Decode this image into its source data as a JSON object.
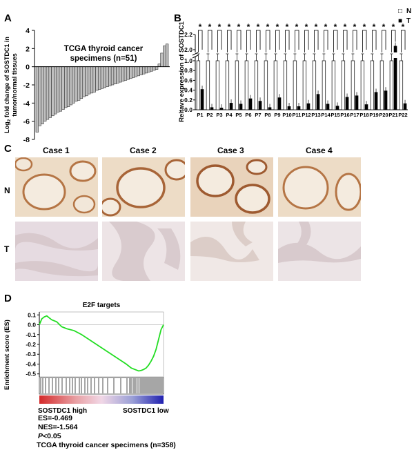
{
  "panels": {
    "a": "A",
    "b": "B",
    "c": "C",
    "d": "D"
  },
  "chart_data": [
    {
      "type": "bar",
      "panel": "A",
      "title": "TCGA thyroid cancer specimens (n=51)",
      "title_line1": "TCGA thyroid cancer",
      "title_line2": "specimens (n=51)",
      "ylabel": "Log2 fold change of SOSTDC1 in tumor/normal tissues",
      "ylabel_line1": "Log",
      "ylabel_sub": "2",
      "ylabel_line1b": " fold change of SOSTDC1 in",
      "ylabel_line2": "tumor/normal tissues",
      "ylim": [
        -8,
        4
      ],
      "yticks": [
        "4",
        "2",
        "0",
        "-2",
        "-4",
        "-6",
        "-8"
      ],
      "values": [
        -7.2,
        -6.5,
        -6.3,
        -6.0,
        -5.8,
        -5.6,
        -5.4,
        -5.2,
        -5.0,
        -4.9,
        -4.7,
        -4.5,
        -4.4,
        -4.2,
        -4.0,
        -3.8,
        -3.7,
        -3.5,
        -3.3,
        -3.2,
        -3.0,
        -2.9,
        -2.8,
        -2.6,
        -2.5,
        -2.4,
        -2.3,
        -2.2,
        -2.1,
        -2.0,
        -1.9,
        -1.8,
        -1.7,
        -1.6,
        -1.5,
        -1.4,
        -1.3,
        -1.2,
        -1.1,
        -1.0,
        -0.9,
        -0.8,
        -0.7,
        -0.6,
        -0.5,
        -0.4,
        -0.3,
        0.3,
        1.5,
        2.3,
        2.5
      ]
    },
    {
      "type": "bar",
      "panel": "B",
      "ylabel": "Reltave expression of SOSTDC1",
      "yticks": [
        "2.2",
        "2.0",
        "1.0",
        "0.8",
        "0.6",
        "0.4",
        "0.2",
        "0.0"
      ],
      "categories": [
        "P1",
        "P2",
        "P3",
        "P4",
        "P5",
        "P6",
        "P7",
        "P8",
        "P9",
        "P10",
        "P11",
        "P12",
        "P13",
        "P14",
        "P15",
        "P16",
        "P17",
        "P18",
        "P19",
        "P20",
        "P21",
        "P22"
      ],
      "significance": "*",
      "legend": [
        {
          "symbol": "□",
          "label": "N"
        },
        {
          "symbol": "■",
          "label": "T"
        }
      ],
      "series": [
        {
          "name": "N",
          "values": [
            1.0,
            1.0,
            1.0,
            1.0,
            1.0,
            1.0,
            1.0,
            1.0,
            1.0,
            1.0,
            1.0,
            1.0,
            1.0,
            1.0,
            1.0,
            1.0,
            1.0,
            1.0,
            1.0,
            1.0,
            1.0,
            1.0
          ]
        },
        {
          "name": "T",
          "values": [
            0.42,
            0.05,
            0.04,
            0.14,
            0.12,
            0.23,
            0.18,
            0.05,
            0.25,
            0.07,
            0.07,
            0.13,
            0.32,
            0.12,
            0.08,
            0.26,
            0.29,
            0.11,
            0.36,
            0.39,
            2.05,
            0.13
          ]
        }
      ]
    },
    {
      "type": "line",
      "panel": "D",
      "title": "E2F targets",
      "ylabel": "Enrichment score (ES)",
      "yticks": [
        "0.1",
        "0.0",
        "-0.1",
        "-0.2",
        "-0.3",
        "-0.4",
        "-0.5"
      ],
      "x": [
        0,
        0.02,
        0.04,
        0.06,
        0.08,
        0.1,
        0.14,
        0.18,
        0.22,
        0.28,
        0.34,
        0.4,
        0.46,
        0.52,
        0.58,
        0.64,
        0.7,
        0.74,
        0.78,
        0.8,
        0.82,
        0.84,
        0.86,
        0.88,
        0.9,
        0.92,
        0.94,
        0.96,
        0.98,
        1.0
      ],
      "y": [
        0.0,
        0.06,
        0.08,
        0.09,
        0.07,
        0.05,
        0.03,
        -0.02,
        -0.04,
        -0.06,
        -0.1,
        -0.15,
        -0.2,
        -0.25,
        -0.3,
        -0.35,
        -0.4,
        -0.44,
        -0.46,
        -0.47,
        -0.465,
        -0.455,
        -0.44,
        -0.41,
        -0.37,
        -0.32,
        -0.25,
        -0.15,
        -0.05,
        0.0
      ],
      "stats": {
        "es": "ES=-0.469",
        "nes": "NES=-1.564",
        "p_italic": "P",
        "p_rest": "<0.05",
        "cohort": "TCGA  thyroid cancer specimens (n=358)"
      },
      "high_label": "SOSTDC1 high",
      "low_label": "SOSTDC1 low"
    }
  ],
  "ihc": {
    "cases": [
      "Case 1",
      "Case 2",
      "Case 3",
      "Case 4"
    ],
    "rows": [
      "N",
      "T"
    ]
  },
  "colors": {
    "gsea_line": "#22dd22",
    "bar_n": "#ffffff",
    "bar_t": "#000000",
    "bar_a": "#c0c0c0"
  }
}
